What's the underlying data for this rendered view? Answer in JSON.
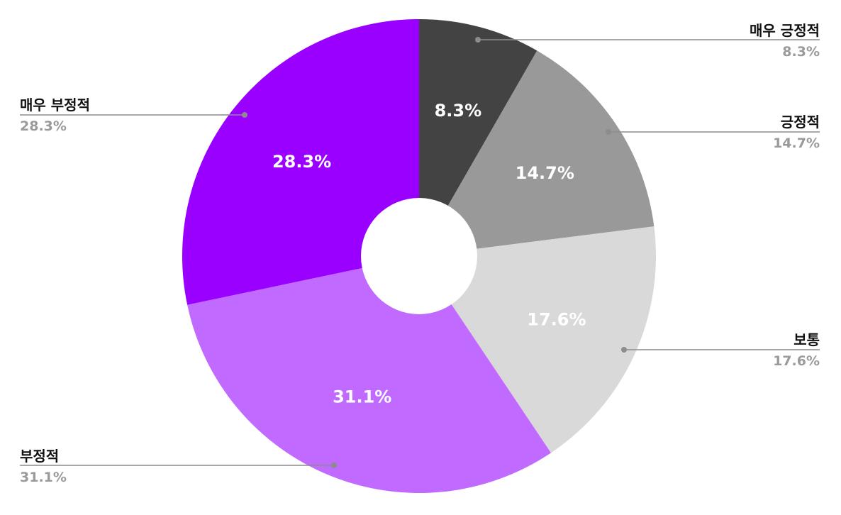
{
  "chart_data": {
    "type": "pie",
    "donut": true,
    "title": "",
    "start_angle_deg": 0,
    "direction": "clockwise",
    "series": [
      {
        "name": "",
        "slices": [
          {
            "label": "매우 긍정적",
            "value": 8.3,
            "display": "8.3%",
            "color": "#434343"
          },
          {
            "label": "긍정적",
            "value": 14.7,
            "display": "14.7%",
            "color": "#999999"
          },
          {
            "label": "보통",
            "value": 17.6,
            "display": "17.6%",
            "color": "#d9d9d9"
          },
          {
            "label": "부정적",
            "value": 31.1,
            "display": "31.1%",
            "color": "#c06aff"
          },
          {
            "label": "매우 부정적",
            "value": 28.3,
            "display": "28.3%",
            "color": "#9900ff"
          }
        ]
      }
    ],
    "legend_placement": "callouts-outside",
    "leader_line_color": "#8c8c8c"
  }
}
